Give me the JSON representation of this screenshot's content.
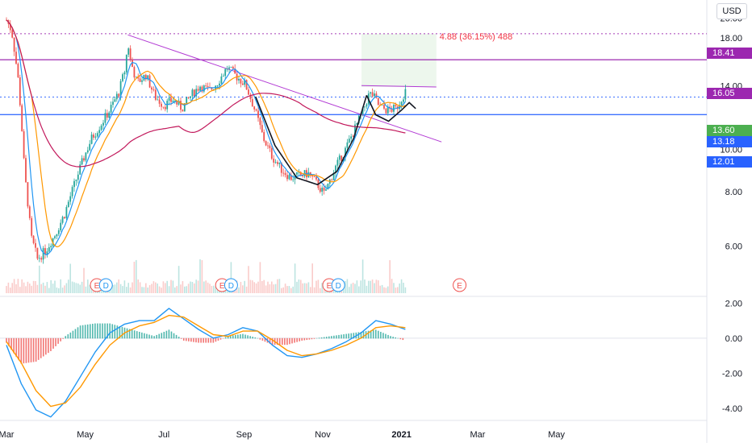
{
  "currency": "USD",
  "measure_label": "4.88 (36.15%) 488",
  "price_tags": [
    {
      "value": "18.41",
      "color": "#9c27b0"
    },
    {
      "value": "16.05",
      "color": "#9c27b0"
    },
    {
      "value": "13.60",
      "color": "#4caf50"
    },
    {
      "value": "13.18",
      "color": "#2962ff"
    },
    {
      "value": "12.01",
      "color": "#2962ff"
    }
  ],
  "chart_data": [
    {
      "type": "candlestick",
      "title": "",
      "y_scale": "log",
      "ylim": [
        4.6,
        22
      ],
      "y_ticks": [
        "20.00",
        "18.00",
        "14.00",
        "10.00",
        "8.00",
        "6.00"
      ],
      "x_ticks": [
        "Mar",
        "May",
        "Jul",
        "Sep",
        "Nov",
        "2021",
        "Mar",
        "May"
      ],
      "close_points": [
        {
          "x": "Mar 1",
          "y": 19.8
        },
        {
          "x": "Mar 5",
          "y": 18.7
        },
        {
          "x": "Mar 10",
          "y": 14.5
        },
        {
          "x": "Mar 15",
          "y": 8.8
        },
        {
          "x": "Mar 20",
          "y": 6.3
        },
        {
          "x": "Mar 25",
          "y": 5.6
        },
        {
          "x": "Apr 1",
          "y": 5.9
        },
        {
          "x": "Apr 8",
          "y": 6.4
        },
        {
          "x": "Apr 15",
          "y": 7.1
        },
        {
          "x": "Apr 22",
          "y": 8.2
        },
        {
          "x": "Apr 29",
          "y": 9.4
        },
        {
          "x": "May 6",
          "y": 10.6
        },
        {
          "x": "May 13",
          "y": 11.4
        },
        {
          "x": "May 20",
          "y": 12.3
        },
        {
          "x": "May 27",
          "y": 13.5
        },
        {
          "x": "Jun 1",
          "y": 15.3
        },
        {
          "x": "Jun 3",
          "y": 17.6
        },
        {
          "x": "Jun 5",
          "y": 16.0
        },
        {
          "x": "Jun 10",
          "y": 14.2
        },
        {
          "x": "Jun 17",
          "y": 14.8
        },
        {
          "x": "Jun 24",
          "y": 13.2
        },
        {
          "x": "Jul 1",
          "y": 12.6
        },
        {
          "x": "Jul 8",
          "y": 13.0
        },
        {
          "x": "Jul 15",
          "y": 12.4
        },
        {
          "x": "Jul 22",
          "y": 13.3
        },
        {
          "x": "Jul 29",
          "y": 14.0
        },
        {
          "x": "Aug 5",
          "y": 13.6
        },
        {
          "x": "Aug 12",
          "y": 14.3
        },
        {
          "x": "Aug 19",
          "y": 15.4
        },
        {
          "x": "Aug 26",
          "y": 14.7
        },
        {
          "x": "Sep 2",
          "y": 14.1
        },
        {
          "x": "Sep 9",
          "y": 12.4
        },
        {
          "x": "Sep 16",
          "y": 10.6
        },
        {
          "x": "Sep 23",
          "y": 9.6
        },
        {
          "x": "Sep 30",
          "y": 9.0
        },
        {
          "x": "Oct 7",
          "y": 8.6
        },
        {
          "x": "Oct 14",
          "y": 8.7
        },
        {
          "x": "Oct 21",
          "y": 8.8
        },
        {
          "x": "Oct 28",
          "y": 8.3
        },
        {
          "x": "Nov 2",
          "y": 7.9
        },
        {
          "x": "Nov 6",
          "y": 8.4
        },
        {
          "x": "Nov 11",
          "y": 9.1
        },
        {
          "x": "Nov 18",
          "y": 9.9
        },
        {
          "x": "Nov 25",
          "y": 11.0
        },
        {
          "x": "Dec 2",
          "y": 12.2
        },
        {
          "x": "Dec 7",
          "y": 13.4
        },
        {
          "x": "Dec 10",
          "y": 13.3
        },
        {
          "x": "Dec 15",
          "y": 12.5
        },
        {
          "x": "Dec 21",
          "y": 12.3
        },
        {
          "x": "Dec 28",
          "y": 12.4
        },
        {
          "x": "Jan 4",
          "y": 13.6
        }
      ],
      "lines": [
        {
          "name": "",
          "color": "#b23ad4",
          "points": [
            {
              "x": "Jun 3",
              "y": 18.3
            },
            {
              "x": "Feb 1",
              "y": 10.4
            }
          ]
        },
        {
          "name": "",
          "color": "#b23ad4",
          "points": [
            {
              "x": "Dec 1",
              "y": 14.0
            },
            {
              "x": "Jan 28",
              "y": 13.9
            }
          ]
        }
      ],
      "hlines": [
        {
          "y": 18.41,
          "color": "#9c27b0",
          "style": "dotted"
        },
        {
          "y": 16.05,
          "color": "#9c27b0",
          "style": "solid"
        },
        {
          "y": 13.18,
          "color": "#2962ff",
          "style": "dotted"
        },
        {
          "y": 12.01,
          "color": "#2962ff",
          "style": "solid"
        }
      ],
      "events": [
        {
          "x": "May 10",
          "label": "E"
        },
        {
          "x": "May 17",
          "label": "D"
        },
        {
          "x": "Aug 15",
          "label": "E"
        },
        {
          "x": "Aug 22",
          "label": "D"
        },
        {
          "x": "Nov 6",
          "label": "E"
        },
        {
          "x": "Nov 13",
          "label": "D"
        },
        {
          "x": "Feb 15",
          "label": "E"
        }
      ]
    },
    {
      "type": "line",
      "title": "",
      "ylim": [
        -4.7,
        2.2
      ],
      "y_ticks": [
        "2.00",
        "0.00",
        "-2.00",
        "-4.00"
      ],
      "series": [
        {
          "name": "",
          "color": "#2196f3",
          "values": [
            -0.4,
            -2.6,
            -4.1,
            -4.5,
            -3.6,
            -2.2,
            -0.8,
            0.3,
            0.8,
            1.0,
            1.0,
            1.7,
            1.1,
            0.5,
            0.0,
            0.2,
            0.6,
            0.4,
            -0.4,
            -1.0,
            -1.1,
            -0.9,
            -0.6,
            -0.2,
            0.3,
            1.0,
            0.8,
            0.5
          ]
        },
        {
          "name": "",
          "color": "#ff9800",
          "values": [
            -0.2,
            -1.4,
            -3.0,
            -3.9,
            -3.7,
            -2.8,
            -1.5,
            -0.4,
            0.3,
            0.7,
            0.9,
            1.3,
            1.2,
            0.7,
            0.2,
            0.1,
            0.4,
            0.4,
            -0.1,
            -0.7,
            -1.0,
            -0.9,
            -0.7,
            -0.4,
            0.0,
            0.6,
            0.7,
            0.6
          ]
        }
      ]
    }
  ]
}
